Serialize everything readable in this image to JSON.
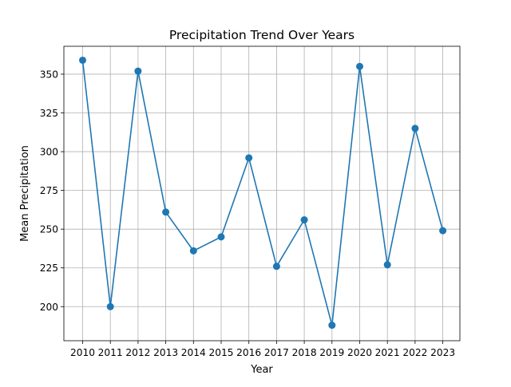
{
  "chart_data": {
    "type": "line",
    "title": "Precipitation Trend Over Years",
    "xlabel": "Year",
    "ylabel": "Mean Precipitation",
    "x": [
      "2010",
      "2011",
      "2012",
      "2013",
      "2014",
      "2015",
      "2016",
      "2017",
      "2018",
      "2019",
      "2020",
      "2021",
      "2022",
      "2023"
    ],
    "series": [
      {
        "values": [
          359,
          200,
          352,
          261,
          236,
          245,
          296,
          226,
          256,
          188,
          355,
          227,
          315,
          249
        ],
        "color": "#1f77b4",
        "marker": "circle"
      }
    ],
    "yticks": [
      200,
      225,
      250,
      275,
      300,
      325,
      350
    ],
    "ylim": [
      178,
      368
    ],
    "grid": true,
    "legend": "none"
  }
}
